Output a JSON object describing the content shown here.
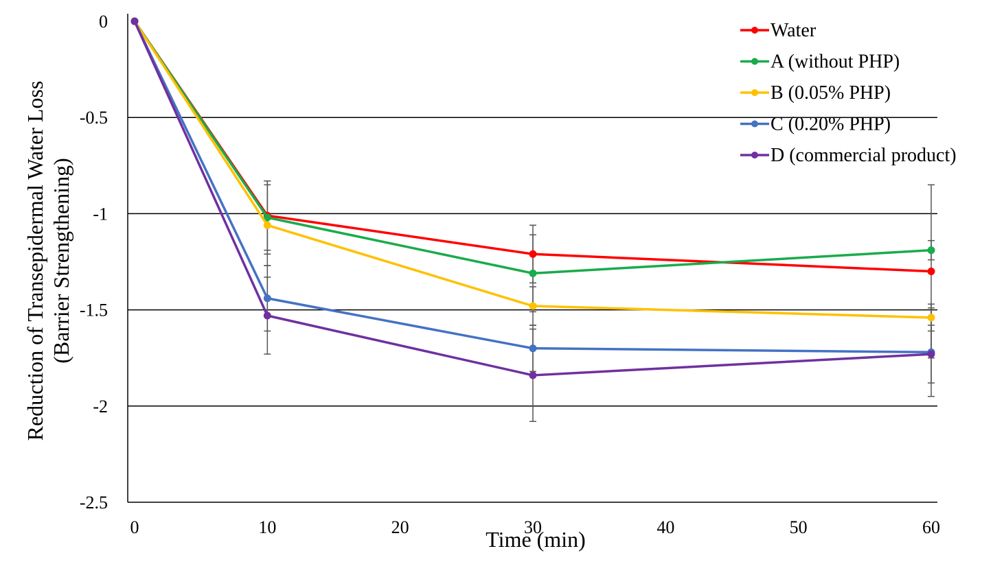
{
  "chart_data": {
    "type": "line",
    "title": "",
    "xlabel": "Time (min)",
    "ylabel_lines": [
      "Reduction of Transepidermal Water Loss",
      "(Barrier Strengthening)"
    ],
    "x": [
      0,
      10,
      30,
      60
    ],
    "xlim": [
      0,
      60
    ],
    "ylim": [
      -2.5,
      0
    ],
    "xticks": [
      0,
      10,
      20,
      30,
      40,
      50,
      60
    ],
    "xtick_labels": [
      "0",
      "10",
      "20",
      "30",
      "40",
      "50",
      "60"
    ],
    "yticks": [
      0,
      -0.5,
      -1,
      -1.5,
      -2,
      -2.5
    ],
    "ytick_labels": [
      "0",
      "-0.5",
      "-1",
      "-1.5",
      "-2",
      "-2.5"
    ],
    "grid": "horizontal",
    "legend_position": "top-right",
    "series": [
      {
        "name": "Water",
        "color": "#ff0000",
        "values": [
          0,
          -1.01,
          -1.21,
          -1.3
        ],
        "errors": [
          0,
          0.18,
          0.15,
          0.45
        ]
      },
      {
        "name": "A (without PHP)",
        "color": "#1aab4b",
        "values": [
          0,
          -1.02,
          -1.31,
          -1.19
        ],
        "errors": [
          0,
          0.19,
          0.2,
          0.05
        ]
      },
      {
        "name": "B (0.05% PHP)",
        "color": "#ffc000",
        "values": [
          0,
          -1.06,
          -1.48,
          -1.54
        ],
        "errors": [
          0,
          0.21,
          0.1,
          0.07
        ]
      },
      {
        "name": "C (0.20% PHP)",
        "color": "#4472c4",
        "values": [
          0,
          -1.44,
          -1.7,
          -1.72
        ],
        "errors": [
          0,
          0.17,
          0.12,
          0.23
        ]
      },
      {
        "name": "D (commercial product)",
        "color": "#7030a0",
        "values": [
          0,
          -1.53,
          -1.84,
          -1.73
        ],
        "errors": [
          0,
          0.2,
          0.24,
          0.15
        ]
      }
    ]
  }
}
